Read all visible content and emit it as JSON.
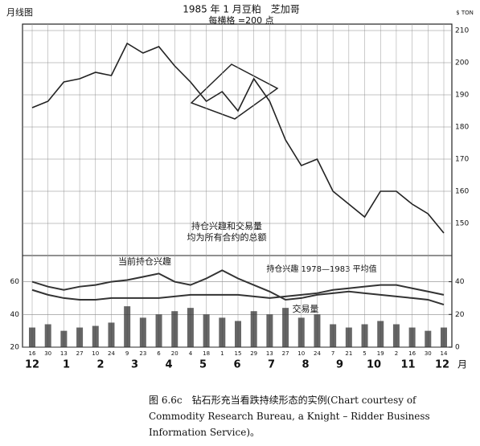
{
  "caption": "图 6.6c　钻石形充当看跌持续形态的实例(Chart courtesy of Commodity Research Bureau, a Knight – Ridder Business Information Service)。",
  "chart_data": [
    {
      "type": "line",
      "corner_label": "月线图",
      "title": "1985 年 1 月豆粕　芝加哥",
      "subtitle": "每横格 =200 点",
      "y_unit": "$ TON",
      "categories": [
        "16",
        "30",
        "13",
        "27",
        "10",
        "24",
        "9",
        "23",
        "6",
        "20",
        "4",
        "18",
        "1",
        "15",
        "29",
        "13",
        "27",
        "10",
        "24",
        "7",
        "21",
        "5",
        "19",
        "2",
        "16",
        "30",
        "14"
      ],
      "months": [
        "12",
        "1",
        "2",
        "3",
        "4",
        "5",
        "6",
        "7",
        "8",
        "9",
        "10",
        "11",
        "12"
      ],
      "month_unit": "月",
      "series": [
        {
          "color": "#222",
          "values": [
            186,
            188,
            194,
            195,
            197,
            196,
            206,
            203,
            205,
            199,
            194,
            188,
            191,
            185,
            195,
            188,
            176,
            168,
            170,
            160,
            156,
            152,
            160,
            160,
            156,
            153,
            147
          ]
        }
      ],
      "ylim": [
        140,
        212
      ],
      "yticks": [
        150,
        160,
        170,
        180,
        190,
        200,
        210
      ],
      "grid": true
    },
    {
      "type": "combo",
      "note": [
        "持仓兴趣和交易量",
        "均为所有合约的总额"
      ],
      "series": [
        {
          "name": "当前持仓兴趣",
          "type": "line",
          "color": "#333",
          "values": [
            60,
            57,
            55,
            57,
            58,
            60,
            61,
            63,
            65,
            60,
            58,
            62,
            67,
            62,
            58,
            54,
            49,
            50,
            52,
            53,
            54,
            53,
            52,
            51,
            50,
            49,
            46
          ]
        },
        {
          "name": "持仓兴趣 1978—1983 平均值",
          "type": "line",
          "color": "#333",
          "values": [
            55,
            52,
            50,
            49,
            49,
            50,
            50,
            50,
            50,
            51,
            52,
            52,
            52,
            52,
            51,
            50,
            51,
            52,
            53,
            55,
            56,
            57,
            58,
            58,
            56,
            54,
            52
          ]
        },
        {
          "name": "交易量",
          "type": "bar",
          "axis": "y2",
          "color": "#333",
          "values": [
            12,
            14,
            10,
            12,
            13,
            15,
            25,
            18,
            20,
            22,
            24,
            20,
            18,
            16,
            22,
            20,
            24,
            18,
            20,
            14,
            12,
            14,
            16,
            14,
            12,
            10,
            12
          ]
        }
      ],
      "ylim": [
        20,
        76
      ],
      "yticks": [
        20,
        40,
        60
      ],
      "y2lim": [
        0,
        56
      ],
      "y2ticks": [
        0,
        20,
        40
      ]
    }
  ]
}
